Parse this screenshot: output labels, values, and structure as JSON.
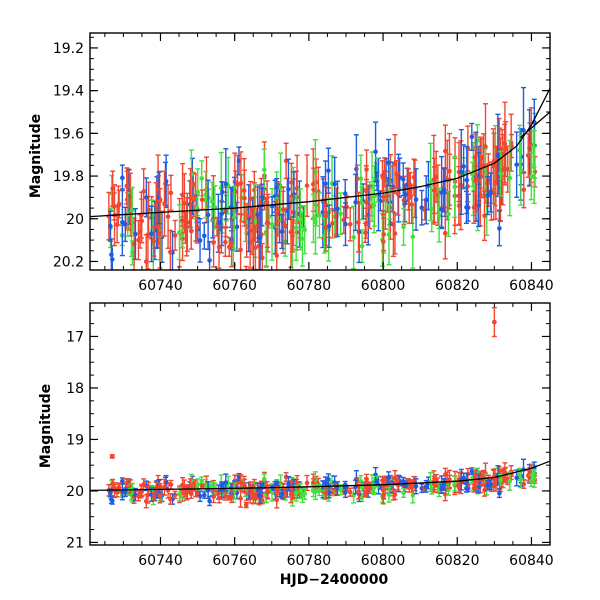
{
  "chart_data": [
    {
      "type": "scatter",
      "panel": "top",
      "ylabel": "Magnitude",
      "xlabel": "",
      "xlim": [
        60721,
        60845
      ],
      "ylim": [
        20.24,
        19.13
      ],
      "y_inverted": true,
      "x_ticks": [
        "60740",
        "60760",
        "60780",
        "60800",
        "60820",
        "60840"
      ],
      "y_ticks": [
        "19.2",
        "19.4",
        "19.6",
        "19.8",
        "20",
        "20.2"
      ],
      "colors": {
        "blue": "#1f5de0",
        "green": "#44e040",
        "red": "#f04830",
        "model": "#000000"
      },
      "model_curve": {
        "x": [
          60721,
          60740,
          60760,
          60780,
          60800,
          60810,
          60820,
          60830,
          60836,
          60840,
          60845
        ],
        "y": [
          19.99,
          19.97,
          19.95,
          19.92,
          19.88,
          19.85,
          19.81,
          19.74,
          19.66,
          19.56,
          19.39
        ],
        "x2": [
          60837,
          60845
        ],
        "y2": [
          19.62,
          19.5
        ]
      }
    },
    {
      "type": "scatter",
      "panel": "bottom",
      "ylabel": "Magnitude",
      "xlabel": "HJD−2400000",
      "xlim": [
        60721,
        60845
      ],
      "ylim": [
        21.05,
        16.35
      ],
      "y_inverted": true,
      "x_ticks": [
        "60740",
        "60760",
        "60780",
        "60800",
        "60820",
        "60840"
      ],
      "y_ticks": [
        "17",
        "18",
        "19",
        "20",
        "21"
      ],
      "colors": {
        "blue": "#1f5de0",
        "green": "#44e040",
        "red": "#f04830",
        "model": "#000000"
      },
      "model_curve": {
        "x": [
          60721,
          60740,
          60760,
          60780,
          60800,
          60820,
          60830,
          60840,
          60845
        ],
        "y": [
          19.99,
          19.97,
          19.95,
          19.92,
          19.88,
          19.81,
          19.74,
          19.56,
          19.42
        ]
      },
      "outliers": [
        {
          "x": 60727,
          "y": 19.33,
          "err": 0.03,
          "color": "red"
        },
        {
          "x": 60830,
          "y": 16.72,
          "err": 0.28,
          "color": "red"
        }
      ]
    }
  ]
}
